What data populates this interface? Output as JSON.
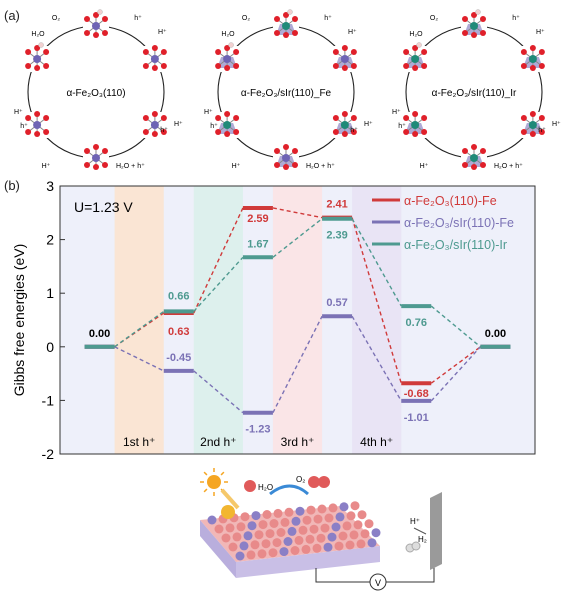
{
  "panel_a": {
    "label": "(a)",
    "cycles": [
      {
        "name": "α-Fe₂O₃(110)",
        "o2": "O₂",
        "h2o": "H₂O",
        "hplus": "H⁺",
        "hole": "h⁺"
      },
      {
        "name": "α-Fe₂O₃/sIr(110)_Fe",
        "o2": "O₂",
        "h2o": "H₂O",
        "hplus": "H⁺",
        "hole": "h⁺"
      },
      {
        "name": "α-Fe₂O₃/sIr(110)_Ir",
        "o2": "O₂",
        "h2o": "H₂O",
        "hplus": "H⁺",
        "hole": "h⁺"
      }
    ]
  },
  "panel_b": {
    "label": "(b)",
    "potential": "U=1.23 V"
  },
  "panel_c": {
    "h2o": "H₂O",
    "o2": "O₂",
    "hplus": "H⁺",
    "h2": "H₂",
    "meter": "V"
  },
  "chart_data": {
    "type": "line",
    "title": "",
    "xlabel": "",
    "ylabel": "Gibbs free energies (eV)",
    "ylim": [
      -2,
      3
    ],
    "yticks": [
      -2,
      -1,
      0,
      1,
      2,
      3
    ],
    "steps": [
      "1st h⁺",
      "2nd h⁺",
      "3rd h⁺",
      "4th h⁺"
    ],
    "series": [
      {
        "name": "α-Fe₂O₃(110)-Fe",
        "color": "#d03a3a",
        "values": [
          0.0,
          0.63,
          2.59,
          2.41,
          -0.68,
          0.0
        ],
        "labels": [
          "",
          "0.63",
          "2.59",
          "2.41",
          "-0.68",
          ""
        ]
      },
      {
        "name": "α-Fe₂O₃/sIr(110)-Fe",
        "color": "#7b72b5",
        "values": [
          0.0,
          -0.45,
          -1.23,
          0.57,
          -1.01,
          0.0
        ],
        "labels": [
          "",
          "-0.45",
          "-1.23",
          "0.57",
          "-1.01",
          ""
        ]
      },
      {
        "name": "α-Fe₂O₃/sIr(110)-Ir",
        "color": "#4e9a90",
        "values": [
          0.0,
          0.66,
          1.67,
          2.39,
          0.76,
          0.0
        ],
        "labels": [
          "",
          "0.66",
          "1.67",
          "2.39",
          "0.76",
          ""
        ]
      }
    ],
    "start_label": "0.00",
    "end_label": "0.00"
  },
  "colors": {
    "fe": "#6e64b4",
    "ir": "#1f8a78",
    "o": "#e0202a",
    "h": "#f2d0d0",
    "band1": "#fbe3cc",
    "band2": "#d9f0ea",
    "band3": "#fbe3e3",
    "band4": "#e7e2f3",
    "bg": "#eef0fa"
  }
}
